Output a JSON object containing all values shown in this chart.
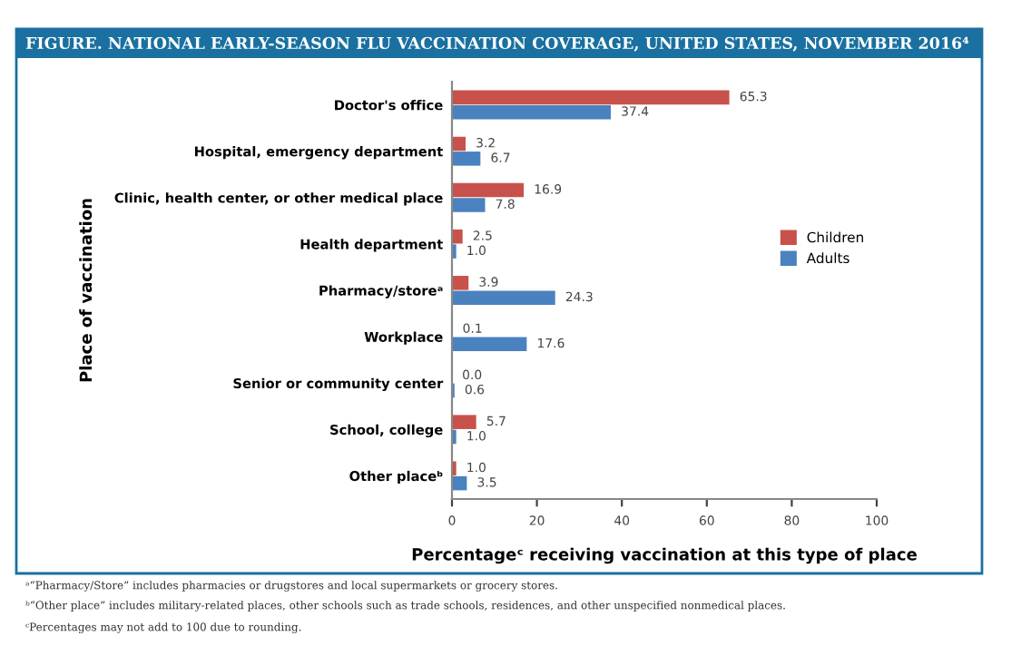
{
  "chart_data": {
    "type": "bar",
    "orientation": "horizontal",
    "title": "FIGURE. NATIONAL EARLY-SEASON FLU VACCINATION COVERAGE, UNITED STATES, NOVEMBER 2016⁴",
    "xlabel": "Percentageᶜ receiving vaccination at this type of place",
    "ylabel": "Place of vaccination",
    "categories": [
      "Doctor's office",
      "Hospital, emergency department",
      "Clinic, health center, or other medical place",
      "Health department",
      "Pharmacy/storeᵃ",
      "Workplace",
      "Senior or community center",
      "School, college",
      "Other placeᵇ"
    ],
    "series": [
      {
        "name": "Children",
        "color": "#c9514b",
        "values": [
          65.3,
          3.2,
          16.9,
          2.5,
          3.9,
          0.1,
          0.0,
          5.7,
          1.0
        ],
        "value_labels": [
          "65.3",
          "3.2",
          "16.9",
          "2.5",
          "3.9",
          "0.1",
          "0.0",
          "5.7",
          "1.0"
        ]
      },
      {
        "name": "Adults",
        "color": "#4a82bf",
        "values": [
          37.4,
          6.7,
          7.8,
          1.0,
          24.3,
          17.6,
          0.6,
          1.0,
          3.5
        ],
        "value_labels": [
          "37.4",
          "6.7",
          "7.8",
          "1.0",
          "24.3",
          "17.6",
          "0.6",
          "1.0",
          "3.5"
        ]
      }
    ],
    "xlim": [
      0,
      100
    ],
    "xticks": [
      0,
      20,
      40,
      60,
      80,
      100
    ],
    "legend": "right",
    "grid": false,
    "annotations": [
      "ᵃ“Pharmacy/Store” includes pharmacies or drugstores and local supermarkets or grocery stores.",
      "ᵇ“Other place” includes military-related places, other schools such as trade schools, residences, and other unspecified nonmedical places.",
      "ᶜPercentages may not add to 100 due to rounding."
    ]
  }
}
